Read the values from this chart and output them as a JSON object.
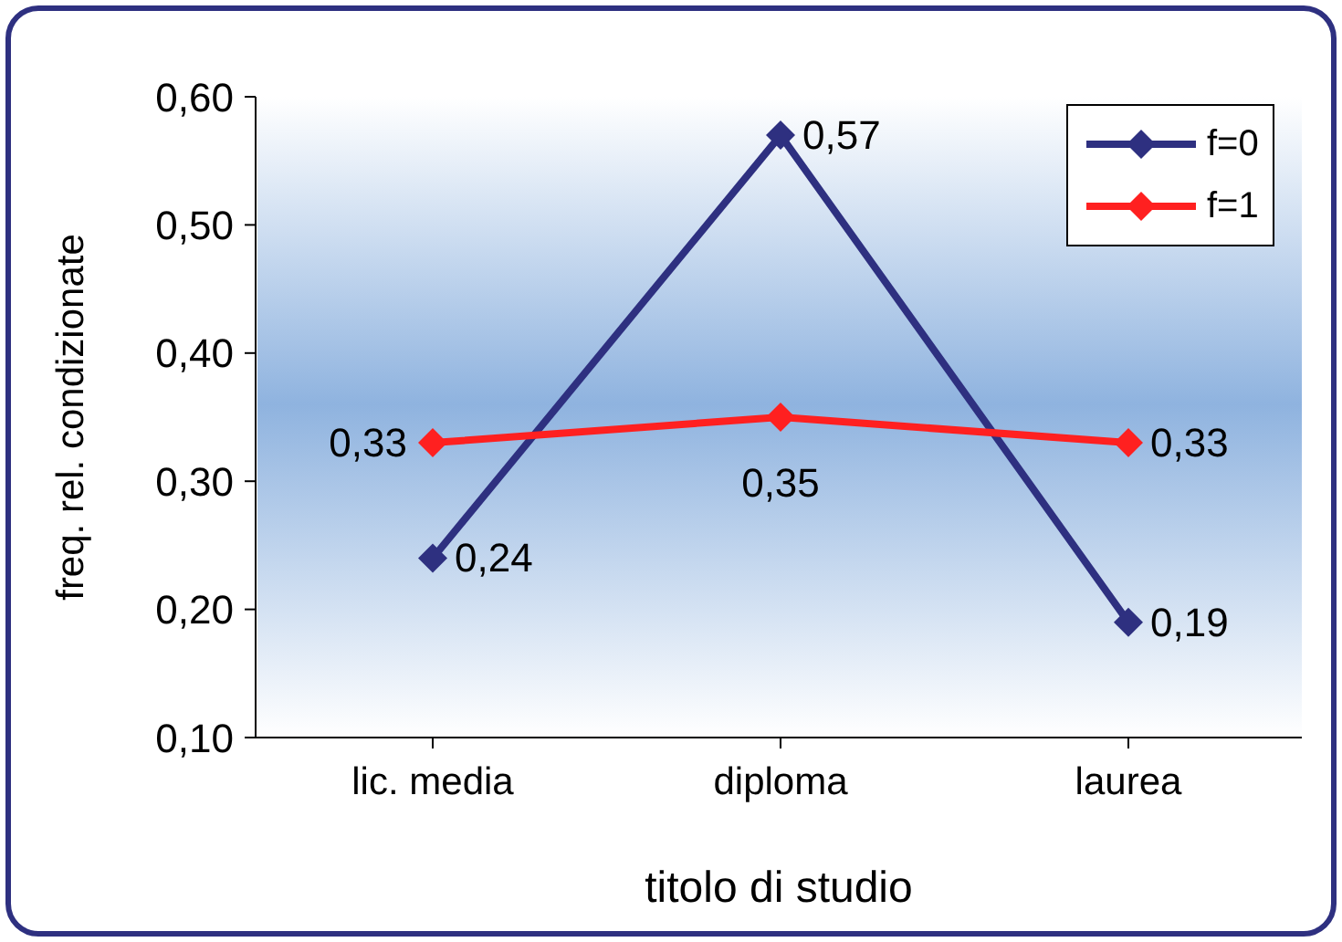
{
  "chart_data": {
    "type": "line",
    "xlabel": "titolo di studio",
    "ylabel": "freq. rel. condizionate",
    "categories": [
      "lic. media",
      "diploma",
      "laurea"
    ],
    "series": [
      {
        "name": "f=0",
        "color": "#2e3080",
        "values": [
          0.24,
          0.57,
          0.19
        ],
        "value_labels": [
          "0,24",
          "0,57",
          "0,19"
        ]
      },
      {
        "name": "f=1",
        "color": "#ff2020",
        "values": [
          0.33,
          0.35,
          0.33
        ],
        "value_labels": [
          "0,33",
          "0,35",
          "0,33"
        ]
      }
    ],
    "ylim": [
      0.1,
      0.6
    ],
    "yticks": [
      {
        "value": 0.1,
        "label": "0,10"
      },
      {
        "value": 0.2,
        "label": "0,20"
      },
      {
        "value": 0.3,
        "label": "0,30"
      },
      {
        "value": 0.4,
        "label": "0,40"
      },
      {
        "value": 0.5,
        "label": "0,50"
      },
      {
        "value": 0.6,
        "label": "0,60"
      }
    ],
    "legend": "top right",
    "marker": "diamond",
    "line_style": "solid",
    "grid": false
  }
}
